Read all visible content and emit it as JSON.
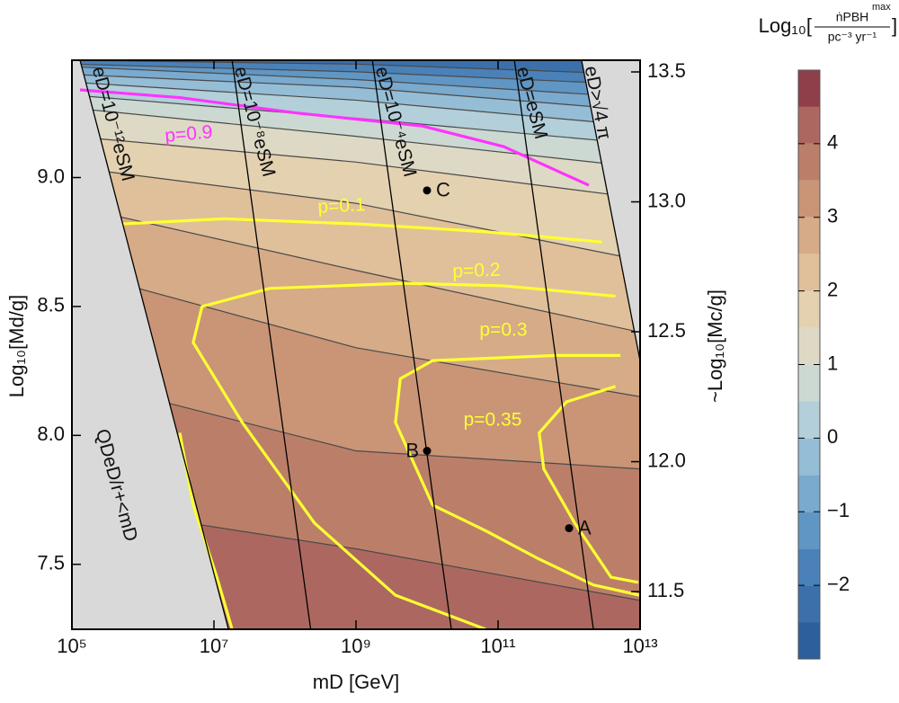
{
  "chart_data": {
    "type": "contour",
    "xlabel": "mD [GeV]",
    "ylabel": "Log₁₀[Md/g]",
    "y2label": "~Log₁₀[Mc/g]",
    "xscale": "log",
    "xlim": [
      100000,
      10000000000000
    ],
    "xticks": [
      {
        "value": 100000,
        "label": "10⁵"
      },
      {
        "value": 10000000,
        "label": "10⁷"
      },
      {
        "value": 1000000000,
        "label": "10⁹"
      },
      {
        "value": 100000000000,
        "label": "10¹¹"
      },
      {
        "value": 10000000000000,
        "label": "10¹³"
      }
    ],
    "ylim": [
      7.248,
      9.455
    ],
    "yticks": [
      7.5,
      {
        "value": 8,
        "label": "8.0"
      },
      8.5,
      {
        "value": 9,
        "label": "9.0"
      }
    ],
    "y2lim": [
      11.355,
      13.545
    ],
    "y2ticks": [
      11.5,
      {
        "value": 12,
        "label": "12.0"
      },
      12.5,
      {
        "value": 13,
        "label": "13.0"
      },
      13.5
    ],
    "colorbar": {
      "title_prefix": "Log₁₀[",
      "numerator": "ṅPBH",
      "numerator_sup": "max",
      "denominator": "pc⁻³ yr⁻¹",
      "title_suffix": "]",
      "lim": [
        -3,
        5
      ],
      "step": 0.5,
      "colors": [
        "#2c5f9b",
        "#3b70aa",
        "#4a81b8",
        "#6096c4",
        "#7aaace",
        "#96bdd6",
        "#b3cfd9",
        "#ccd9d2",
        "#ddd9c4",
        "#e3d1b0",
        "#dfc09b",
        "#d6ab87",
        "#c99576",
        "#bb7f69",
        "#ac6860",
        "#8f3f4a"
      ],
      "ticks": [
        {
          "value": -2,
          "label": "−2"
        },
        {
          "value": -1,
          "label": "−1"
        },
        0,
        1,
        2,
        3,
        4
      ]
    },
    "levels": [
      {
        "level": 4,
        "x": [
          100000,
          1000000000,
          10000000000000
        ],
        "y": [
          7.73,
          7.56,
          7.36
        ]
      },
      {
        "level": 3.5,
        "x": [
          100000,
          1000000000,
          10000000000000
        ],
        "y": [
          8.22,
          7.94,
          7.87
        ]
      },
      {
        "level": 3,
        "x": [
          100000,
          1000000000,
          10000000000000
        ],
        "y": [
          8.64,
          8.34,
          8.15
        ]
      },
      {
        "level": 2.5,
        "x": [
          100000,
          1000000000,
          10000000000000
        ],
        "y": [
          8.89,
          8.64,
          8.4
        ]
      },
      {
        "level": 2,
        "x": [
          100000,
          1000000000,
          10000000000000
        ],
        "y": [
          9.04,
          8.9,
          8.68
        ]
      },
      {
        "level": 1.5,
        "x": [
          100000,
          1000000000,
          10000000000000
        ],
        "y": [
          9.16,
          9.06,
          8.92
        ]
      },
      {
        "level": 1,
        "x": [
          100000,
          1000000000,
          10000000000000
        ],
        "y": [
          9.27,
          9.16,
          9.04
        ]
      },
      {
        "level": 0.5,
        "x": [
          100000,
          1000000000,
          10000000000000
        ],
        "y": [
          9.32,
          9.23,
          9.13
        ]
      },
      {
        "level": 0,
        "x": [
          100000,
          1000000000,
          10000000000000
        ],
        "y": [
          9.37,
          9.3,
          9.2
        ]
      },
      {
        "level": -0.5,
        "x": [
          100000,
          1000000000,
          10000000000000
        ],
        "y": [
          9.4,
          9.35,
          9.26
        ]
      },
      {
        "level": -1,
        "x": [
          100000,
          1000000000,
          10000000000000
        ],
        "y": [
          9.43,
          9.38,
          9.31
        ]
      },
      {
        "level": -1.5,
        "x": [
          100000,
          1000000000,
          10000000000000
        ],
        "y": [
          9.44,
          9.41,
          9.36
        ]
      },
      {
        "level": -2,
        "x": [
          100000,
          1000000000,
          10000000000000
        ],
        "y": [
          9.455,
          9.44,
          9.4
        ]
      }
    ],
    "p_contours": [
      {
        "label": "p=0.9",
        "color": "#ff33ff",
        "x": [
          130000,
          3300000,
          150000000,
          8600000000,
          120000000000,
          1900000000000
        ],
        "y": [
          9.34,
          9.31,
          9.25,
          9.2,
          9.12,
          8.97
        ]
      },
      {
        "label": "p=0.1",
        "color": "#ffff33",
        "x": [
          500000,
          14000000,
          1100000000,
          67000000000,
          2900000000000,
          null,
          3300000,
          5100000,
          11000000,
          18000000
        ],
        "y": [
          8.82,
          8.84,
          8.82,
          8.79,
          8.75,
          null,
          8.01,
          7.73,
          7.45,
          7.248
        ]
      },
      {
        "label": "p=0.2",
        "color": "#ffff33",
        "x": [
          67000000000,
          3600000000,
          260000000,
          25000000,
          5100000,
          6800000,
          61000000,
          4800000000,
          120000000000,
          4500000000000
        ],
        "y": [
          7.248,
          7.38,
          7.66,
          8.05,
          8.36,
          8.5,
          8.57,
          8.59,
          8.58,
          8.54
        ]
      },
      {
        "label": "p=0.3",
        "color": "#ffff33",
        "x": [
          5300000000000,
          680000000000,
          12000000000,
          4200000000,
          3600000000,
          12000000000,
          67000000000,
          380000000000,
          2200000000000,
          10000000000000
        ],
        "y": [
          8.31,
          8.31,
          8.29,
          8.22,
          8.05,
          7.73,
          7.63,
          7.52,
          7.42,
          7.38
        ]
      },
      {
        "label": "p=0.35",
        "color": "#ffff33",
        "x": [
          4500000000000,
          920000000000,
          380000000000,
          440000000000,
          1200000000000,
          3900000000000,
          9400000000000
        ],
        "y": [
          8.19,
          8.13,
          8.01,
          7.87,
          7.66,
          7.45,
          7.43
        ]
      }
    ],
    "constraints": [
      {
        "label": "eD=10⁻¹²eSM",
        "x": [
          130000,
          16000000
        ],
        "y": [
          9.455,
          7.248
        ]
      },
      {
        "label": "eD=10⁻⁸eSM",
        "x": [
          18000000,
          230000000
        ],
        "y": [
          9.455,
          7.248
        ]
      },
      {
        "label": "eD=10⁻⁴eSM",
        "x": [
          1700000000,
          22000000000
        ],
        "y": [
          9.455,
          7.248
        ]
      },
      {
        "label": "eD=eSM",
        "x": [
          170000000000,
          2200000000000
        ],
        "y": [
          9.455,
          7.248
        ]
      },
      {
        "label": "eD>√4 π",
        "x": [
          1500000000000,
          10000000000000
        ],
        "y": [
          9.455,
          8.29
        ]
      }
    ],
    "region_label": "QDeD/r+<mD",
    "points": [
      {
        "label": "A",
        "x": 1000000000000,
        "y": 7.64
      },
      {
        "label": "B",
        "x": 10000000000,
        "y": 7.94
      },
      {
        "label": "C",
        "x": 10000000000,
        "y": 8.95
      }
    ]
  }
}
